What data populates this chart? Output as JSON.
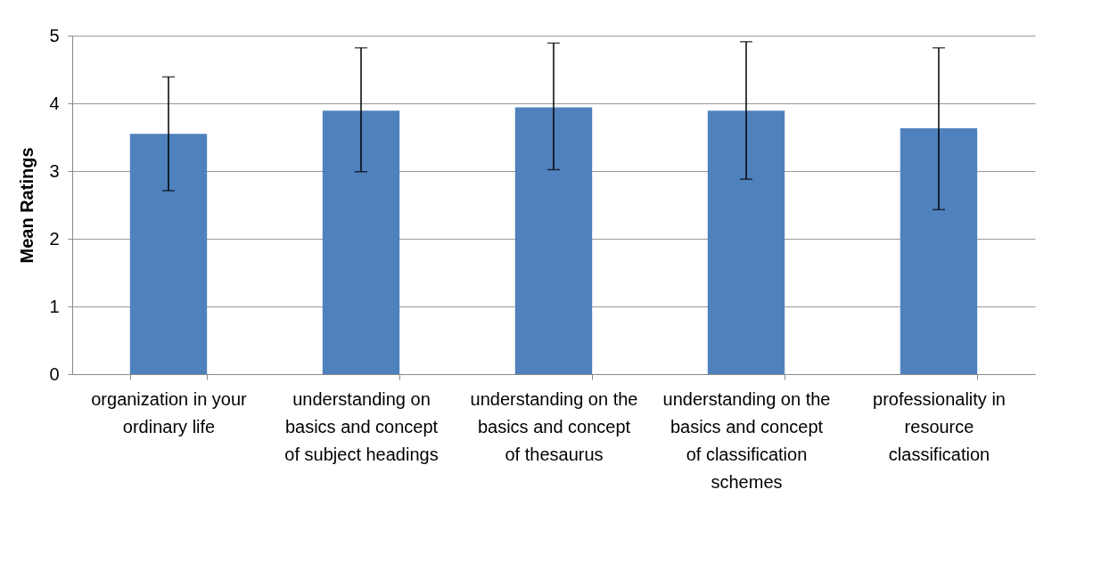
{
  "chart_data": {
    "type": "bar",
    "ylabel": "Mean Ratings",
    "categories": [
      "organization in your ordinary life",
      "understanding on basics and concept of subject headings",
      "understanding on the basics and concept of thesaurus",
      "understanding on the basics and concept of classification schemes",
      "professionality in resource classification"
    ],
    "values": [
      3.55,
      3.89,
      3.94,
      3.89,
      3.63
    ],
    "errors": [
      [
        2.71,
        4.39
      ],
      [
        2.99,
        4.82
      ],
      [
        3.02,
        4.89
      ],
      [
        2.88,
        4.91
      ],
      [
        2.43,
        4.82
      ]
    ],
    "color": "#4f81bd",
    "ylim": [
      0,
      5
    ],
    "yticks": [
      0,
      1,
      2,
      3,
      4,
      5
    ],
    "grid": "y"
  }
}
